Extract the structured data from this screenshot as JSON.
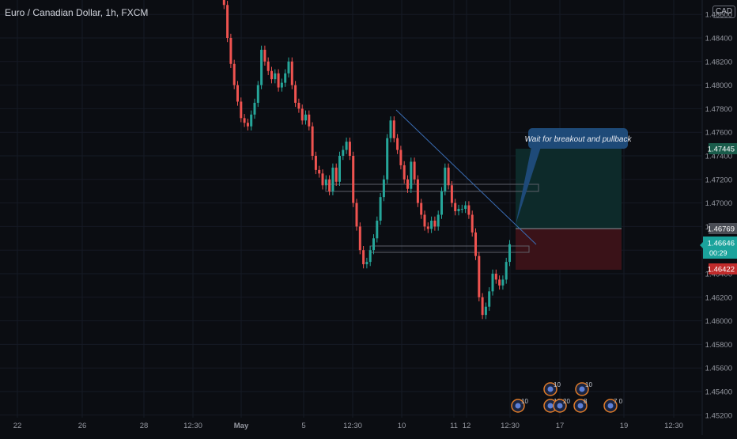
{
  "header": {
    "symbol_title": "Euro / Canadian Dollar, 1h, FXCM",
    "currency": "CAD"
  },
  "annotation": {
    "callout_text": "Wait for breakout and pullback"
  },
  "price_tags": {
    "target": "1.47445",
    "entry": "1.46769",
    "last": "1.46646",
    "countdown": "00:29",
    "stop": "1.46422"
  },
  "colors": {
    "background": "#0b0d12",
    "up_candle": "#26a69a",
    "down_candle": "#ef5350",
    "grid": "#161a25",
    "axis_text": "#9598a1",
    "trendline": "#3a6db5",
    "target_tag": "#1a5c4b",
    "entry_tag": "#4a4d55",
    "last_tag": "#1ba39c",
    "stop_tag": "#c02b2b",
    "profit_zone": "#0d2a2a",
    "loss_zone": "#3a1218",
    "callout": "#1e4a78",
    "event_icon": "#e07b28"
  },
  "chart_data": {
    "type": "candlestick",
    "title": "Euro / Canadian Dollar, 1h, FXCM",
    "ylim": [
      1.452,
      1.4875
    ],
    "y_ticks": [
      "1.48600",
      "1.48400",
      "1.48200",
      "1.48000",
      "1.47800",
      "1.47600",
      "1.47400",
      "1.47200",
      "1.47000",
      "1.46800",
      "1.46600",
      "1.46400",
      "1.46200",
      "1.46000",
      "1.45800",
      "1.45600",
      "1.45400",
      "1.45200"
    ],
    "x_ticks": [
      "22",
      "26",
      "28",
      "12:30",
      "May",
      "5",
      "12:30",
      "10",
      "11",
      "12",
      "12:30",
      "17",
      "19",
      "12:30"
    ],
    "grid": true,
    "close_path": [
      [
        0,
        1.4885
      ],
      [
        1,
        1.4868
      ],
      [
        2,
        1.484
      ],
      [
        3,
        1.4818
      ],
      [
        4,
        1.48
      ],
      [
        5,
        1.4786
      ],
      [
        6,
        1.4772
      ],
      [
        7,
        1.4768
      ],
      [
        8,
        1.4765
      ],
      [
        9,
        1.4775
      ],
      [
        10,
        1.4785
      ],
      [
        11,
        1.48
      ],
      [
        12,
        1.483
      ],
      [
        13,
        1.482
      ],
      [
        14,
        1.4812
      ],
      [
        15,
        1.4805
      ],
      [
        16,
        1.481
      ],
      [
        17,
        1.4798
      ],
      [
        18,
        1.4802
      ],
      [
        19,
        1.481
      ],
      [
        20,
        1.482
      ],
      [
        21,
        1.48
      ],
      [
        22,
        1.4785
      ],
      [
        23,
        1.478
      ],
      [
        24,
        1.477
      ],
      [
        25,
        1.4775
      ],
      [
        26,
        1.4765
      ],
      [
        27,
        1.474
      ],
      [
        28,
        1.4728
      ],
      [
        29,
        1.4725
      ],
      [
        30,
        1.4715
      ],
      [
        31,
        1.472
      ],
      [
        32,
        1.471
      ],
      [
        33,
        1.473
      ],
      [
        34,
        1.4718
      ],
      [
        35,
        1.474
      ],
      [
        36,
        1.4745
      ],
      [
        37,
        1.4752
      ],
      [
        38,
        1.474
      ],
      [
        39,
        1.47
      ],
      [
        40,
        1.468
      ],
      [
        41,
        1.466
      ],
      [
        42,
        1.4648
      ],
      [
        43,
        1.465
      ],
      [
        44,
        1.466
      ],
      [
        45,
        1.467
      ],
      [
        46,
        1.4685
      ],
      [
        47,
        1.4705
      ],
      [
        48,
        1.472
      ],
      [
        49,
        1.4755
      ],
      [
        50,
        1.477
      ],
      [
        51,
        1.4755
      ],
      [
        52,
        1.4745
      ],
      [
        53,
        1.4732
      ],
      [
        54,
        1.472
      ],
      [
        55,
        1.4712
      ],
      [
        56,
        1.4735
      ],
      [
        57,
        1.472
      ],
      [
        58,
        1.47
      ],
      [
        59,
        1.469
      ],
      [
        60,
        1.468
      ],
      [
        61,
        1.4678
      ],
      [
        62,
        1.4685
      ],
      [
        63,
        1.468
      ],
      [
        64,
        1.469
      ],
      [
        65,
        1.471
      ],
      [
        66,
        1.473
      ],
      [
        67,
        1.4715
      ],
      [
        68,
        1.47
      ],
      [
        69,
        1.4693
      ],
      [
        70,
        1.4695
      ],
      [
        71,
        1.4695
      ],
      [
        72,
        1.4698
      ],
      [
        73,
        1.469
      ],
      [
        74,
        1.4675
      ],
      [
        75,
        1.4655
      ],
      [
        76,
        1.462
      ],
      [
        77,
        1.4605
      ],
      [
        78,
        1.4612
      ],
      [
        79,
        1.4625
      ],
      [
        80,
        1.464
      ],
      [
        81,
        1.4635
      ],
      [
        82,
        1.463
      ],
      [
        83,
        1.4635
      ],
      [
        84,
        1.465
      ],
      [
        85,
        1.4665
      ]
    ],
    "trade_setup": {
      "target": 1.47445,
      "entry": 1.46769,
      "stop": 1.46422,
      "last_price": 1.46646
    },
    "events": [
      {
        "label": "10"
      },
      {
        "label": "10"
      },
      {
        "label": "10"
      },
      {
        "label": "20"
      },
      {
        "label": "10"
      },
      {
        "label": "8"
      },
      {
        "label": "7 0"
      }
    ]
  }
}
